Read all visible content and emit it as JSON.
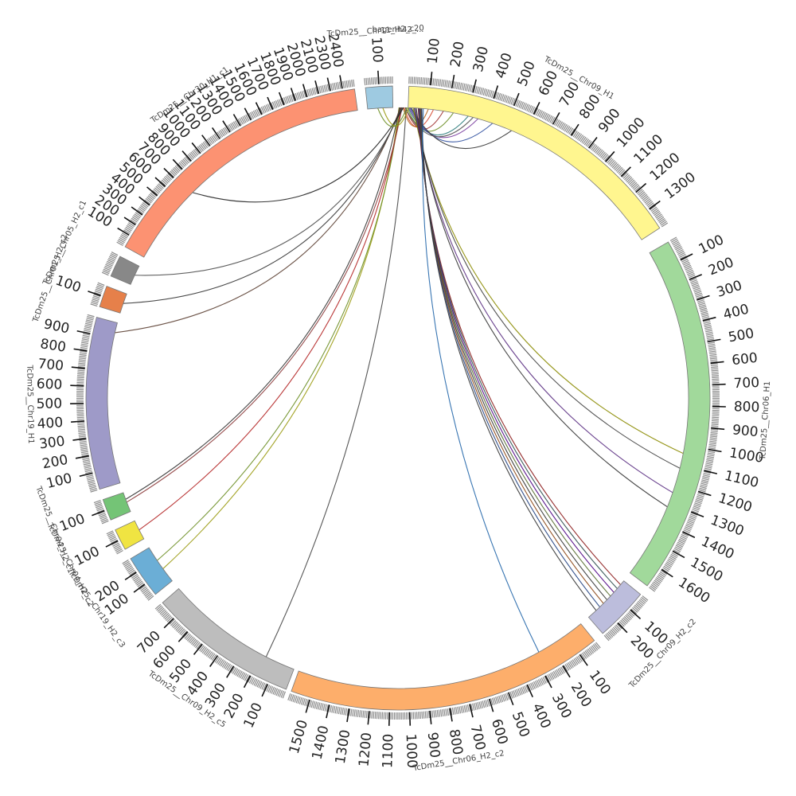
{
  "diagram": {
    "type": "circos",
    "segments": [
      {
        "id": "h1",
        "name": "TcDm25__Chr09_H1",
        "start_deg": 2,
        "end_deg": 57,
        "color": "#fff68f",
        "ticks": [
          "100",
          "200",
          "300",
          "400",
          "500",
          "600",
          "700",
          "800",
          "900",
          "1000",
          "1100",
          "1200",
          "1300"
        ]
      },
      {
        "id": "h2",
        "name": "TcDm25__Chr06_H1",
        "start_deg": 60,
        "end_deg": 127,
        "color": "#a1d99b",
        "ticks": [
          "100",
          "200",
          "300",
          "400",
          "500",
          "600",
          "700",
          "800",
          "900",
          "1000",
          "1100",
          "1200",
          "1300",
          "1400",
          "1500",
          "1600"
        ]
      },
      {
        "id": "h3",
        "name": "TcDm25__Chr09_H2_c2",
        "start_deg": 129,
        "end_deg": 139,
        "color": "#bcbddc",
        "ticks": [
          "100",
          "200"
        ]
      },
      {
        "id": "h4",
        "name": "TcDm25__Chr06_H2_c2",
        "start_deg": 141,
        "end_deg": 200,
        "color": "#fdae6b",
        "ticks": [
          "100",
          "200",
          "300",
          "400",
          "500",
          "600",
          "700",
          "800",
          "900",
          "1000",
          "1100",
          "1200",
          "1300",
          "1400",
          "1500"
        ]
      },
      {
        "id": "h5",
        "name": "TcDm25__Chr09_H2_c5",
        "start_deg": 201,
        "end_deg": 229,
        "color": "#bdbdbd",
        "ticks": [
          "100",
          "200",
          "300",
          "400",
          "500",
          "600",
          "700"
        ]
      },
      {
        "id": "h6",
        "name": "TcDm25__Chr19_H2_c3",
        "start_deg": 231,
        "end_deg": 239,
        "color": "#6baed6",
        "ticks": [
          "100",
          "200"
        ]
      },
      {
        "id": "h7",
        "name": "TcDm25__Chr04_H2_c2",
        "start_deg": 241,
        "end_deg": 245,
        "color": "#f0e442",
        "ticks": [
          "100"
        ]
      },
      {
        "id": "h8",
        "name": "TcDm25__Chr04_H2_c1",
        "start_deg": 247,
        "end_deg": 251,
        "color": "#74c476",
        "ticks": [
          "100"
        ]
      },
      {
        "id": "h9",
        "name": "TcDm25__Chr19_H1",
        "start_deg": 253,
        "end_deg": 285,
        "color": "#9e9ac8",
        "ticks": [
          "100",
          "200",
          "300",
          "400",
          "500",
          "600",
          "700",
          "800",
          "900"
        ]
      },
      {
        "id": "h10",
        "name": "TcDm25__Chr01_H2_c2",
        "start_deg": 287,
        "end_deg": 291,
        "color": "#e6804a",
        "ticks": [
          "100"
        ]
      },
      {
        "id": "h11",
        "name": "TcDm25__Chr05_H2_c1",
        "start_deg": 293,
        "end_deg": 297,
        "color": "#888888",
        "ticks": []
      },
      {
        "id": "h12",
        "name": "TcDm25__Chr30_H1_c1",
        "start_deg": 299,
        "end_deg": 352,
        "color": "#fc9272",
        "ticks": [
          "100",
          "200",
          "300",
          "400",
          "500",
          "600",
          "700",
          "800",
          "900",
          "1000",
          "1100",
          "1200",
          "1300",
          "1400",
          "1500",
          "1600",
          "1700",
          "1800",
          "1900",
          "2000",
          "2100",
          "2300",
          "2400"
        ]
      },
      {
        "id": "h13",
        "name": "TcDm25__Chr11_H2_c20",
        "start_deg": 354,
        "end_deg": 359,
        "color": "#9ecae1",
        "ticks": [
          "100"
        ]
      }
    ],
    "top_label_overlap": "bagenh42_...",
    "links": [
      {
        "from": 1.2,
        "to": 7,
        "color": "#d64a32"
      },
      {
        "from": 1.5,
        "to": 9,
        "color": "#a03030"
      },
      {
        "from": 1.8,
        "to": 11,
        "color": "#6b8e23"
      },
      {
        "from": 2.0,
        "to": 14,
        "color": "#2e7d7d"
      },
      {
        "from": 2.2,
        "to": 16,
        "color": "#7b3fa0"
      },
      {
        "from": 2.4,
        "to": 19,
        "color": "#3050a0"
      },
      {
        "from": 2.6,
        "to": 23,
        "color": "#333333"
      },
      {
        "from": 1.0,
        "to": 6,
        "color": "#b5651d"
      },
      {
        "from": 1.4,
        "to": 15,
        "color": "#555555"
      },
      {
        "from": 3.0,
        "to": 101,
        "color": "#8b8b00"
      },
      {
        "from": 3.2,
        "to": 104,
        "color": "#404040"
      },
      {
        "from": 3.4,
        "to": 109,
        "color": "#5a2d82"
      },
      {
        "from": 3.6,
        "to": 112,
        "color": "#333333"
      },
      {
        "from": 4.0,
        "to": 130,
        "color": "#8b1a1a"
      },
      {
        "from": 4.1,
        "to": 131,
        "color": "#2f4f4f"
      },
      {
        "from": 4.2,
        "to": 132,
        "color": "#4b0082"
      },
      {
        "from": 4.3,
        "to": 133,
        "color": "#556b2f"
      },
      {
        "from": 4.4,
        "to": 134,
        "color": "#333333"
      },
      {
        "from": 4.5,
        "to": 135,
        "color": "#8b4513"
      },
      {
        "from": 4.6,
        "to": 136,
        "color": "#1f3f7f"
      },
      {
        "from": 4.7,
        "to": 137,
        "color": "#333333"
      },
      {
        "from": 5.0,
        "to": 151,
        "color": "#2266aa"
      },
      {
        "from": 1.6,
        "to": 207,
        "color": "#444444"
      },
      {
        "from": 0.2,
        "to": 234,
        "color": "#9a9a10"
      },
      {
        "from": 0.4,
        "to": 236,
        "color": "#6b8e23"
      },
      {
        "from": 0.6,
        "to": 243,
        "color": "#b22222"
      },
      {
        "from": 0.8,
        "to": 249,
        "color": "#8b3a3a"
      },
      {
        "from": 0.3,
        "to": 249.6,
        "color": "#333333"
      },
      {
        "from": 0.5,
        "to": 283,
        "color": "#5c4033"
      },
      {
        "from": 0.7,
        "to": 289,
        "color": "#333333"
      },
      {
        "from": 0.9,
        "to": 295,
        "color": "#4b4b4b"
      },
      {
        "from": 1.1,
        "to": 315,
        "color": "#222222"
      },
      {
        "from": 357,
        "to": 2.1,
        "color": "#9a9a10"
      },
      {
        "from": 356,
        "to": 1.7,
        "color": "#6b8e23"
      }
    ]
  }
}
